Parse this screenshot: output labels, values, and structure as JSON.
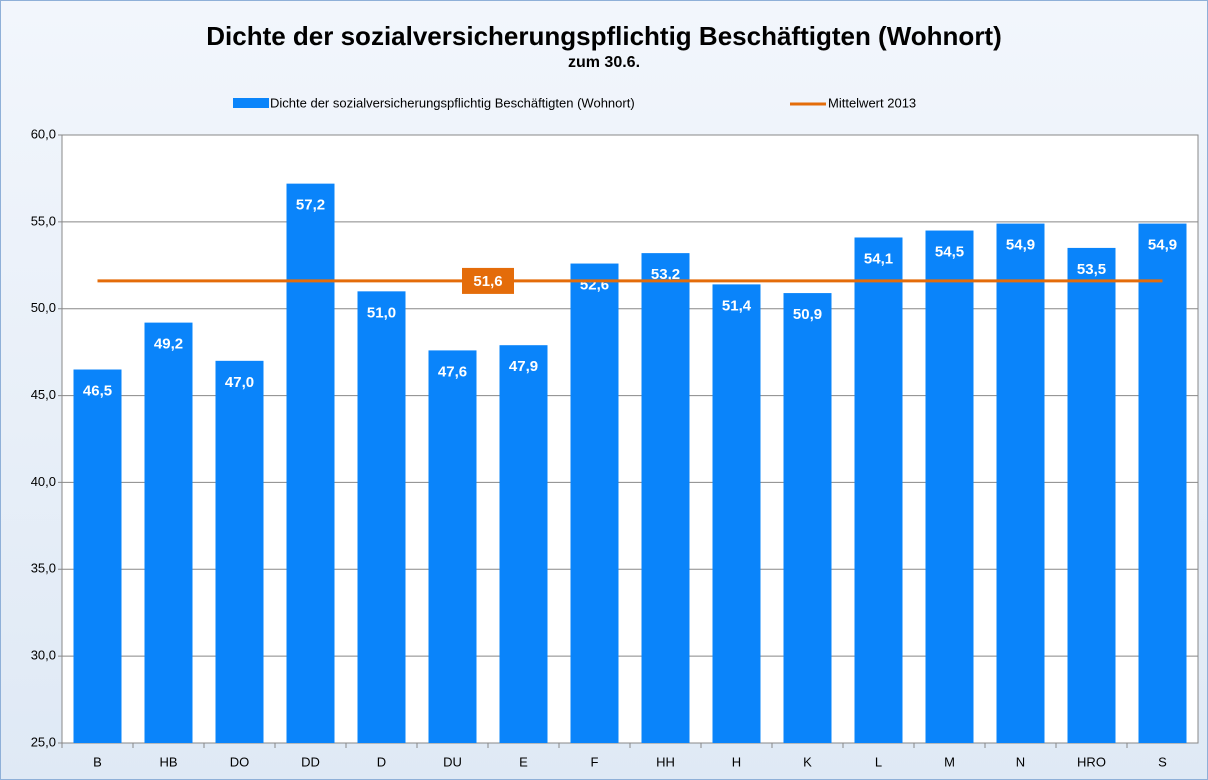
{
  "chart_data": {
    "type": "bar",
    "title": "Dichte der sozialversicherungspflichtig Beschäftigten (Wohnort)",
    "subtitle": "zum 30.6.",
    "categories": [
      "B",
      "HB",
      "DO",
      "DD",
      "D",
      "DU",
      "E",
      "F",
      "HH",
      "H",
      "K",
      "L",
      "M",
      "N",
      "HRO",
      "S"
    ],
    "series": [
      {
        "name": "Dichte der sozialversicherungspflichtig Beschäftigten (Wohnort)",
        "color": "#0a84fa",
        "values": [
          46.5,
          49.2,
          47.0,
          57.2,
          51.0,
          47.6,
          47.9,
          52.6,
          53.2,
          51.4,
          50.9,
          54.1,
          54.5,
          54.9,
          53.5,
          54.9
        ],
        "value_labels": [
          "46,5",
          "49,2",
          "47,0",
          "57,2",
          "51,0",
          "47,6",
          "47,9",
          "52,6",
          "53,2",
          "51,4",
          "50,9",
          "54,1",
          "54,5",
          "54,9",
          "53,5",
          "54,9"
        ]
      }
    ],
    "mean": {
      "name": "Mittelwert 2013",
      "color": "#e46c0a",
      "value": 51.6,
      "value_label": "51,6"
    },
    "ylim": [
      25,
      60
    ],
    "yticks": [
      {
        "value": 25,
        "label": "25,0"
      },
      {
        "value": 30,
        "label": "30,0"
      },
      {
        "value": 35,
        "label": "35,0"
      },
      {
        "value": 40,
        "label": "40,0"
      },
      {
        "value": 45,
        "label": "45,0"
      },
      {
        "value": 50,
        "label": "50,0"
      },
      {
        "value": 55,
        "label": "55,0"
      },
      {
        "value": 60,
        "label": "60,0"
      }
    ],
    "grid": true
  }
}
